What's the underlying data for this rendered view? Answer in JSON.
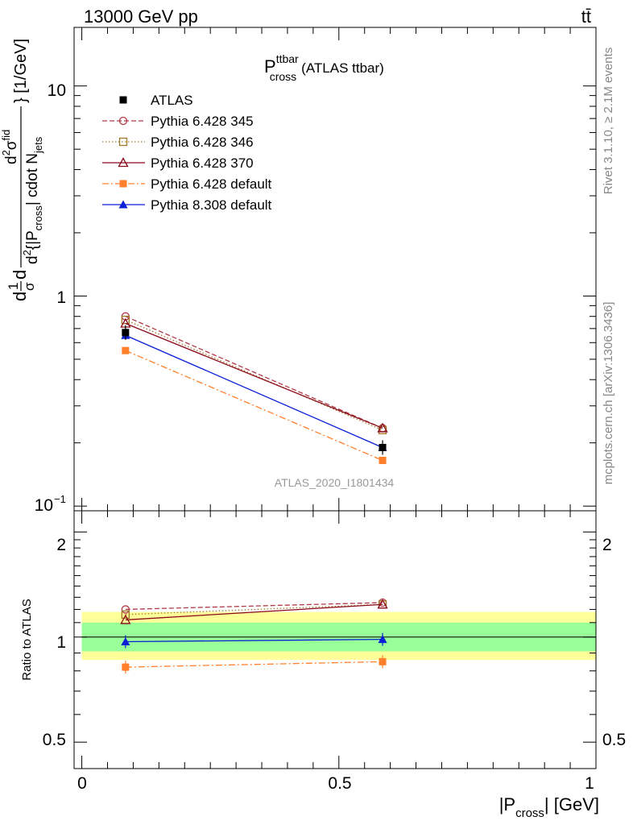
{
  "header": {
    "energy_label": "13000 GeV pp",
    "process_label": "tt̄"
  },
  "plot_title": {
    "main": "P",
    "sup": "ttbar",
    "sub": "cross",
    "suffix": "(ATLAS ttbar)"
  },
  "side_labels": {
    "rivet": "Rivet 3.1.10, ≥ 2.1M events",
    "mcplots": "mcplots.cern.ch [arXiv:1306.3436]"
  },
  "watermark": "ATLAS_2020_I1801434",
  "main_axis": {
    "ylabel_parts": {
      "d_left": "d",
      "frac1_num": "1",
      "frac1_den": "σ",
      "d2": "d",
      "frac2_num": "d",
      "frac2_num_sup": "2",
      "frac2_num_tail": "σ",
      "frac2_num_sup2": "fid",
      "frac2_den": "d",
      "frac2_den_sup": "2",
      "frac2_den_mid": "{|P",
      "frac2_den_sub": "cross",
      "frac2_den_tail": "| cdot N",
      "frac2_den_sub2": "jets",
      "close": "} [1/GeV]"
    },
    "ytick_labels": [
      "10",
      "1",
      "10"
    ],
    "ytick_exp": "−1"
  },
  "ratio_axis": {
    "ylabel": "Ratio to ATLAS",
    "ytick_labels_left": [
      "2",
      "1",
      "0.5"
    ],
    "ytick_labels_right": [
      "2",
      "0.5"
    ]
  },
  "x_axis": {
    "tick_labels": [
      "0",
      "0.5",
      "1"
    ],
    "label_main": "|P",
    "label_sub": "cross",
    "label_tail": "| [GeV]"
  },
  "chart_data": {
    "type": "line",
    "main": {
      "x": [
        0.085,
        0.585
      ],
      "xlim": [
        -0.015,
        1.0
      ],
      "ylim": [
        0.095,
        19.0
      ],
      "yscale": "log",
      "series": [
        {
          "name": "ATLAS",
          "values": [
            0.67,
            0.19
          ],
          "color": "#000000",
          "marker": "filled-square",
          "line": "none"
        },
        {
          "name": "Pythia 6.428 345",
          "values": [
            0.8,
            0.235
          ],
          "color": "#b03a48",
          "marker": "open-circle",
          "line": "dashed"
        },
        {
          "name": "Pythia 6.428 346",
          "values": [
            0.77,
            0.23
          ],
          "color": "#a07828",
          "marker": "open-square",
          "line": "dotted"
        },
        {
          "name": "Pythia 6.428 370",
          "values": [
            0.74,
            0.235
          ],
          "color": "#8b0a1a",
          "marker": "open-triangle",
          "line": "solid"
        },
        {
          "name": "Pythia 6.428 default",
          "values": [
            0.55,
            0.165
          ],
          "color": "#ff7f2a",
          "marker": "filled-square",
          "line": "dashdot"
        },
        {
          "name": "Pythia 8.308 default",
          "values": [
            0.65,
            0.19
          ],
          "color": "#0a1fd6",
          "marker": "filled-triangle",
          "line": "solid"
        }
      ]
    },
    "ratio": {
      "x": [
        0.085,
        0.585
      ],
      "ylim": [
        0.42,
        2.3
      ],
      "yscale": "log",
      "band_inner": [
        0.91,
        1.1
      ],
      "band_outer": [
        0.86,
        1.18
      ],
      "series": [
        {
          "name": "Pythia 6.428 345",
          "values": [
            1.2,
            1.255
          ]
        },
        {
          "name": "Pythia 6.428 346",
          "values": [
            1.16,
            1.24
          ]
        },
        {
          "name": "Pythia 6.428 370",
          "values": [
            1.12,
            1.24
          ]
        },
        {
          "name": "Pythia 6.428 default",
          "values": [
            0.82,
            0.85
          ]
        },
        {
          "name": "Pythia 8.308 default",
          "values": [
            0.97,
            0.985
          ]
        }
      ]
    }
  }
}
